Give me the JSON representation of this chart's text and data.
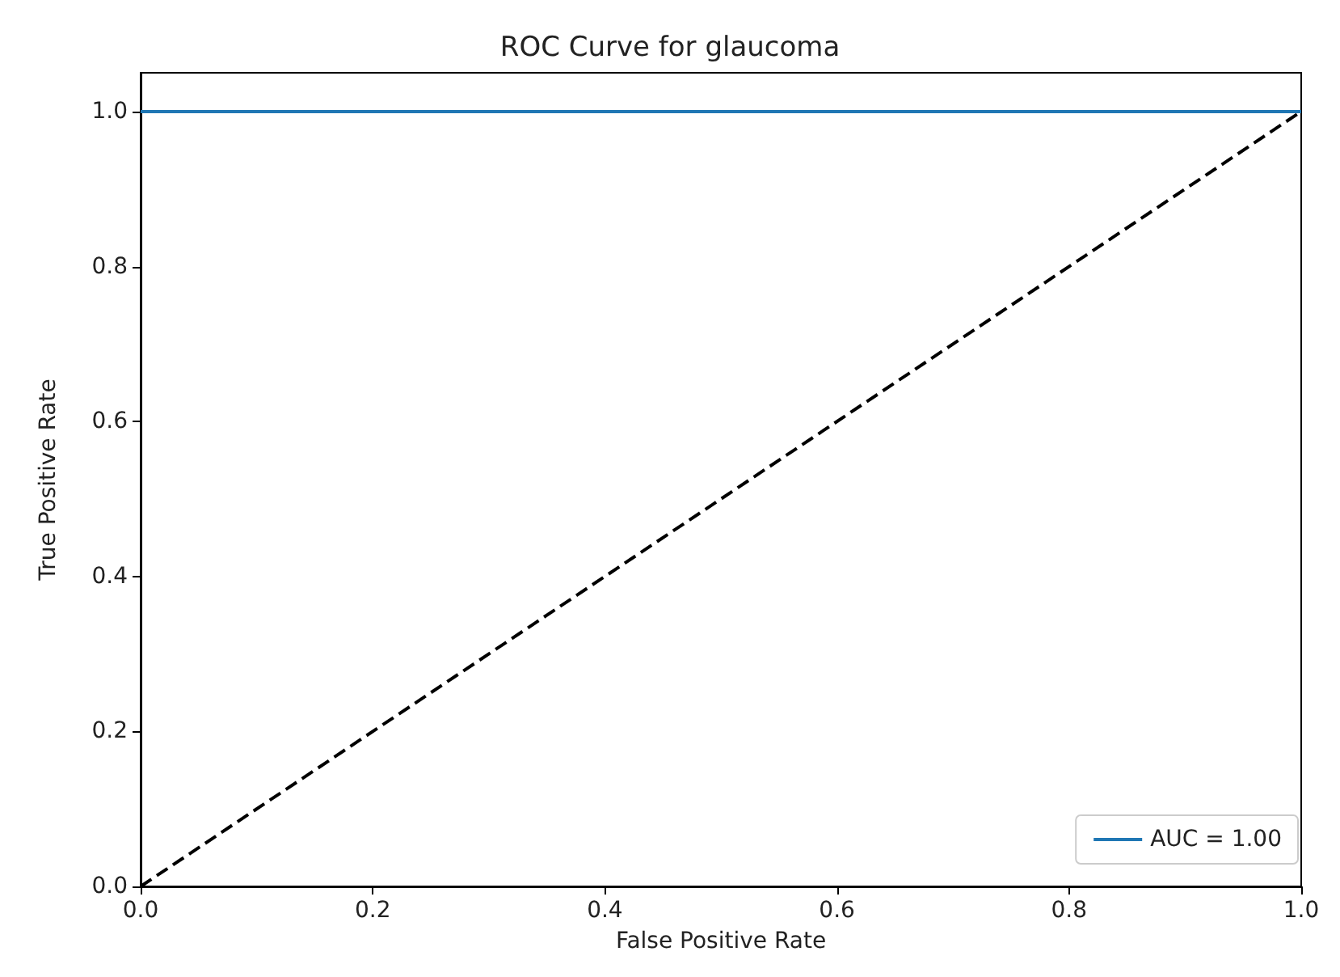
{
  "chart_data": {
    "type": "line",
    "title": "ROC Curve for glaucoma",
    "xlabel": "False Positive Rate",
    "ylabel": "True Positive Rate",
    "x": [
      0,
      1
    ],
    "xlim": [
      0,
      1
    ],
    "ylim": [
      0,
      1.05
    ],
    "xticks": [
      {
        "value": 0,
        "label": "0.0"
      },
      {
        "value": 0.2,
        "label": "0.2"
      },
      {
        "value": 0.4,
        "label": "0.4"
      },
      {
        "value": 0.6,
        "label": "0.6"
      },
      {
        "value": 0.8,
        "label": "0.8"
      },
      {
        "value": 1,
        "label": "1.0"
      }
    ],
    "yticks": [
      {
        "value": 0,
        "label": "0.0"
      },
      {
        "value": 0.2,
        "label": "0.2"
      },
      {
        "value": 0.4,
        "label": "0.4"
      },
      {
        "value": 0.6,
        "label": "0.6"
      },
      {
        "value": 0.8,
        "label": "0.8"
      },
      {
        "value": 1,
        "label": "1.0"
      }
    ],
    "series": [
      {
        "name": "AUC = 1.00",
        "color": "#1f77b4",
        "values": [
          1,
          1
        ],
        "line_style": "solid"
      },
      {
        "color": "#000000",
        "values": [
          0,
          1
        ],
        "line_style": "dashed"
      }
    ],
    "legend": "bottom right",
    "grid": false,
    "marker": "none"
  }
}
